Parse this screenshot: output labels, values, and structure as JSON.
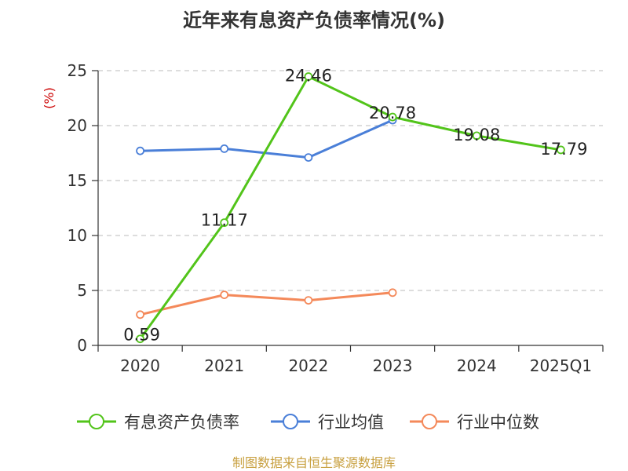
{
  "chart_data": {
    "type": "line",
    "title": "近年来有息资产负债率情况(%)",
    "ylabel": "(%)",
    "categories": [
      "2020",
      "2021",
      "2022",
      "2023",
      "2024",
      "2025Q1"
    ],
    "ylim": [
      0,
      25
    ],
    "yticks": [
      0,
      5,
      10,
      15,
      20,
      25
    ],
    "grid": true,
    "legend_position": "bottom",
    "series": [
      {
        "name": "有息资产负债率",
        "color": "#52c41a",
        "values": [
          0.59,
          11.17,
          24.46,
          20.78,
          19.08,
          17.79
        ],
        "labels": [
          "0.59",
          "11.17",
          "24.46",
          "20.78",
          "19.08",
          "17.79"
        ]
      },
      {
        "name": "行业均值",
        "color": "#4a7fd8",
        "values": [
          17.7,
          17.9,
          17.1,
          20.5,
          null,
          null
        ]
      },
      {
        "name": "行业中位数",
        "color": "#f4895a",
        "values": [
          2.8,
          4.6,
          4.1,
          4.8,
          null,
          null
        ]
      }
    ]
  },
  "source": "制图数据来自恒生聚源数据库"
}
